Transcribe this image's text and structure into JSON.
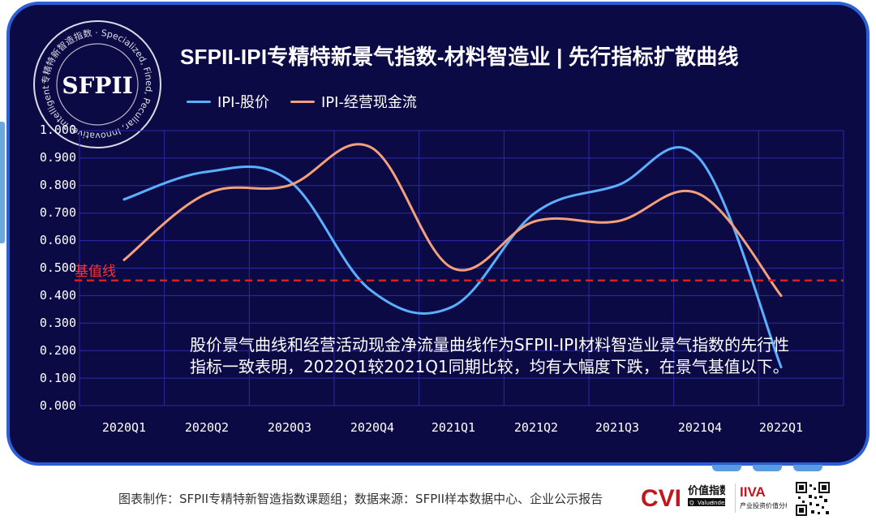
{
  "title": "SFPII-IPI专精特新景气指数-材料智造业 | 先行指标扩散曲线",
  "seal": {
    "center_text": "SFPII",
    "ring_text": "专精特新智造指数 · Specialized, Fined, Peculiar, Innovative, Intelligentization Index (SFPII)"
  },
  "colors": {
    "panel_bg": "#0c0a44",
    "panel_border": "#2a5fd6",
    "grid": "#2b2aa8",
    "baseline": "#d81f1f"
  },
  "chart_data": {
    "type": "line",
    "categories": [
      "2020Q1",
      "2020Q2",
      "2020Q3",
      "2020Q4",
      "2021Q1",
      "2021Q2",
      "2021Q3",
      "2021Q4",
      "2022Q1"
    ],
    "series": [
      {
        "name": "IPI-股价",
        "color": "#5ab0ff",
        "values": [
          0.75,
          0.85,
          0.82,
          0.42,
          0.36,
          0.7,
          0.8,
          0.9,
          0.14
        ]
      },
      {
        "name": "IPI-经营现金流",
        "color": "#f4a07a",
        "values": [
          0.53,
          0.77,
          0.8,
          0.94,
          0.5,
          0.67,
          0.67,
          0.77,
          0.4
        ]
      }
    ],
    "yticks": [
      "1.000",
      "0.900",
      "0.800",
      "0.700",
      "0.600",
      "0.500",
      "0.400",
      "0.300",
      "0.200",
      "0.100",
      "0.000"
    ],
    "ylim": [
      0,
      1
    ],
    "baseline": {
      "value": 0.455,
      "label": "基值线"
    },
    "grid": true,
    "legend_position": "top-left"
  },
  "annotation": "股价景气曲线和经营活动现金净流量曲线作为SFPII-IPI材料智造业景气指数的先行性指标一致表明，2022Q1较2021Q1同期比较，均有大幅度下跌，在景气基值以下。",
  "footer": {
    "credit": "图表制作：SFPII专精特新智造指数课题组；数据来源：SFPII样本数据中心、企业公示报告",
    "logo_cvi": {
      "mark": "CVI",
      "name": "价值指数",
      "sub": [
        "Q",
        "Value",
        "Index"
      ]
    },
    "logo_iiva": {
      "mark": "IIVA",
      "sub": "产业投资价值分析"
    }
  }
}
